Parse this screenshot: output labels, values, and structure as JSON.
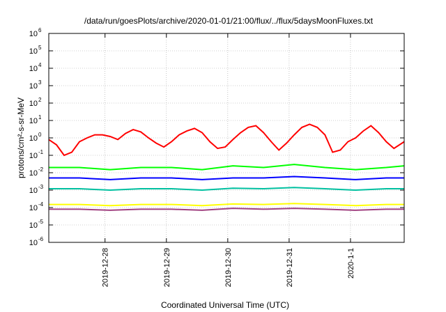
{
  "chart_data": {
    "type": "line",
    "title": "/data/run/goesPlots/archive/2020-01-01/21:00/flux/../flux/5daysMoonFluxes.txt",
    "xlabel": "Coordinated Universal Time (UTC)",
    "ylabel": "protons/cm²-s-sr-MeV",
    "y_scale": "log",
    "ylim": [
      1e-06,
      1000000.0
    ],
    "y_ticks": [
      {
        "base": "10",
        "exp": "-6"
      },
      {
        "base": "10",
        "exp": "-5"
      },
      {
        "base": "10",
        "exp": "-4"
      },
      {
        "base": "10",
        "exp": "-3"
      },
      {
        "base": "10",
        "exp": "-2"
      },
      {
        "base": "10",
        "exp": "-1"
      },
      {
        "base": "10",
        "exp": "0"
      },
      {
        "base": "10",
        "exp": "1"
      },
      {
        "base": "10",
        "exp": "2"
      },
      {
        "base": "10",
        "exp": "3"
      },
      {
        "base": "10",
        "exp": "4"
      },
      {
        "base": "10",
        "exp": "5"
      },
      {
        "base": "10",
        "exp": "6"
      }
    ],
    "xlim": [
      "2019-12-27 02:00",
      "2020-01-01 21:00"
    ],
    "x_ticks": [
      {
        "label": "2019-12-28",
        "value": "2019-12-28 00:00"
      },
      {
        "label": "2019-12-29",
        "value": "2019-12-29 00:00"
      },
      {
        "label": "2019-12-30",
        "value": "2019-12-30 00:00"
      },
      {
        "label": "2019-12-31",
        "value": "2019-12-31 00:00"
      },
      {
        "label": "2020-1-1",
        "value": "2020-01-01 00:00"
      }
    ],
    "grid": true,
    "series": [
      {
        "color": "#ff0000",
        "x": [
          "2019-12-27 02:00",
          "2019-12-27 05:00",
          "2019-12-27 08:00",
          "2019-12-27 11:00",
          "2019-12-27 14:00",
          "2019-12-27 17:00",
          "2019-12-27 20:00",
          "2019-12-27 23:00",
          "2019-12-28 02:00",
          "2019-12-28 05:00",
          "2019-12-28 08:00",
          "2019-12-28 11:00",
          "2019-12-28 14:00",
          "2019-12-28 17:00",
          "2019-12-28 20:00",
          "2019-12-28 23:00",
          "2019-12-29 02:00",
          "2019-12-29 05:00",
          "2019-12-29 08:00",
          "2019-12-29 11:00",
          "2019-12-29 14:00",
          "2019-12-29 17:00",
          "2019-12-29 20:00",
          "2019-12-29 23:00",
          "2019-12-30 02:00",
          "2019-12-30 05:00",
          "2019-12-30 08:00",
          "2019-12-30 11:00",
          "2019-12-30 14:00",
          "2019-12-30 17:00",
          "2019-12-30 20:00",
          "2019-12-30 23:00",
          "2019-12-31 02:00",
          "2019-12-31 05:00",
          "2019-12-31 08:00",
          "2019-12-31 11:00",
          "2019-12-31 14:00",
          "2019-12-31 17:00",
          "2019-12-31 20:00",
          "2019-12-31 23:00",
          "2020-01-01 02:00",
          "2020-01-01 05:00",
          "2020-01-01 08:00",
          "2020-01-01 11:00",
          "2020-01-01 14:00",
          "2020-01-01 17:00",
          "2020-01-01 21:00"
        ],
        "y": [
          0.8,
          0.4,
          0.1,
          0.15,
          0.6,
          1.0,
          1.5,
          1.5,
          1.2,
          0.8,
          1.8,
          3.0,
          2.2,
          1.0,
          0.5,
          0.3,
          0.6,
          1.5,
          2.5,
          3.5,
          2.0,
          0.6,
          0.25,
          0.3,
          0.8,
          2.0,
          4.0,
          5.0,
          2.0,
          0.6,
          0.2,
          0.5,
          1.5,
          4.0,
          6.0,
          4.0,
          1.5,
          0.15,
          0.2,
          0.6,
          1.0,
          2.5,
          5.0,
          2.0,
          0.6,
          0.25,
          0.6
        ]
      },
      {
        "color": "#00ff00",
        "x": [
          "2019-12-27 02:00",
          "2019-12-27 14:00",
          "2019-12-28 02:00",
          "2019-12-28 14:00",
          "2019-12-29 02:00",
          "2019-12-29 14:00",
          "2019-12-30 02:00",
          "2019-12-30 14:00",
          "2019-12-31 02:00",
          "2019-12-31 14:00",
          "2020-01-01 02:00",
          "2020-01-01 14:00",
          "2020-01-01 21:00"
        ],
        "y": [
          0.02,
          0.02,
          0.015,
          0.02,
          0.02,
          0.015,
          0.025,
          0.02,
          0.03,
          0.02,
          0.015,
          0.02,
          0.025
        ]
      },
      {
        "color": "#0000ff",
        "x": [
          "2019-12-27 02:00",
          "2019-12-27 14:00",
          "2019-12-28 02:00",
          "2019-12-28 14:00",
          "2019-12-29 02:00",
          "2019-12-29 14:00",
          "2019-12-30 02:00",
          "2019-12-30 14:00",
          "2019-12-31 02:00",
          "2019-12-31 14:00",
          "2020-01-01 02:00",
          "2020-01-01 14:00",
          "2020-01-01 21:00"
        ],
        "y": [
          0.005,
          0.005,
          0.004,
          0.005,
          0.005,
          0.004,
          0.005,
          0.005,
          0.006,
          0.005,
          0.004,
          0.005,
          0.005
        ]
      },
      {
        "color": "#00c0a0",
        "x": [
          "2019-12-27 02:00",
          "2019-12-27 14:00",
          "2019-12-28 02:00",
          "2019-12-28 14:00",
          "2019-12-29 02:00",
          "2019-12-29 14:00",
          "2019-12-30 02:00",
          "2019-12-30 14:00",
          "2019-12-31 02:00",
          "2019-12-31 14:00",
          "2020-01-01 02:00",
          "2020-01-01 14:00",
          "2020-01-01 21:00"
        ],
        "y": [
          0.0012,
          0.0012,
          0.001,
          0.0012,
          0.0012,
          0.001,
          0.0013,
          0.0012,
          0.0014,
          0.0012,
          0.001,
          0.0012,
          0.0012
        ]
      },
      {
        "color": "#ffff00",
        "x": [
          "2019-12-27 02:00",
          "2019-12-27 14:00",
          "2019-12-28 02:00",
          "2019-12-28 14:00",
          "2019-12-29 02:00",
          "2019-12-29 14:00",
          "2019-12-30 02:00",
          "2019-12-30 14:00",
          "2019-12-31 02:00",
          "2019-12-31 14:00",
          "2020-01-01 02:00",
          "2020-01-01 14:00",
          "2020-01-01 21:00"
        ],
        "y": [
          0.00015,
          0.00015,
          0.00013,
          0.00015,
          0.00015,
          0.00013,
          0.00016,
          0.00015,
          0.00017,
          0.00015,
          0.00013,
          0.00015,
          0.00015
        ]
      },
      {
        "color": "#a04080",
        "x": [
          "2019-12-27 02:00",
          "2019-12-27 14:00",
          "2019-12-28 02:00",
          "2019-12-28 14:00",
          "2019-12-29 02:00",
          "2019-12-29 14:00",
          "2019-12-30 02:00",
          "2019-12-30 14:00",
          "2019-12-31 02:00",
          "2019-12-31 14:00",
          "2020-01-01 02:00",
          "2020-01-01 14:00",
          "2020-01-01 21:00"
        ],
        "y": [
          8e-05,
          8e-05,
          7e-05,
          8e-05,
          8e-05,
          7e-05,
          9e-05,
          8e-05,
          9e-05,
          8e-05,
          7e-05,
          8e-05,
          8e-05
        ]
      }
    ]
  }
}
